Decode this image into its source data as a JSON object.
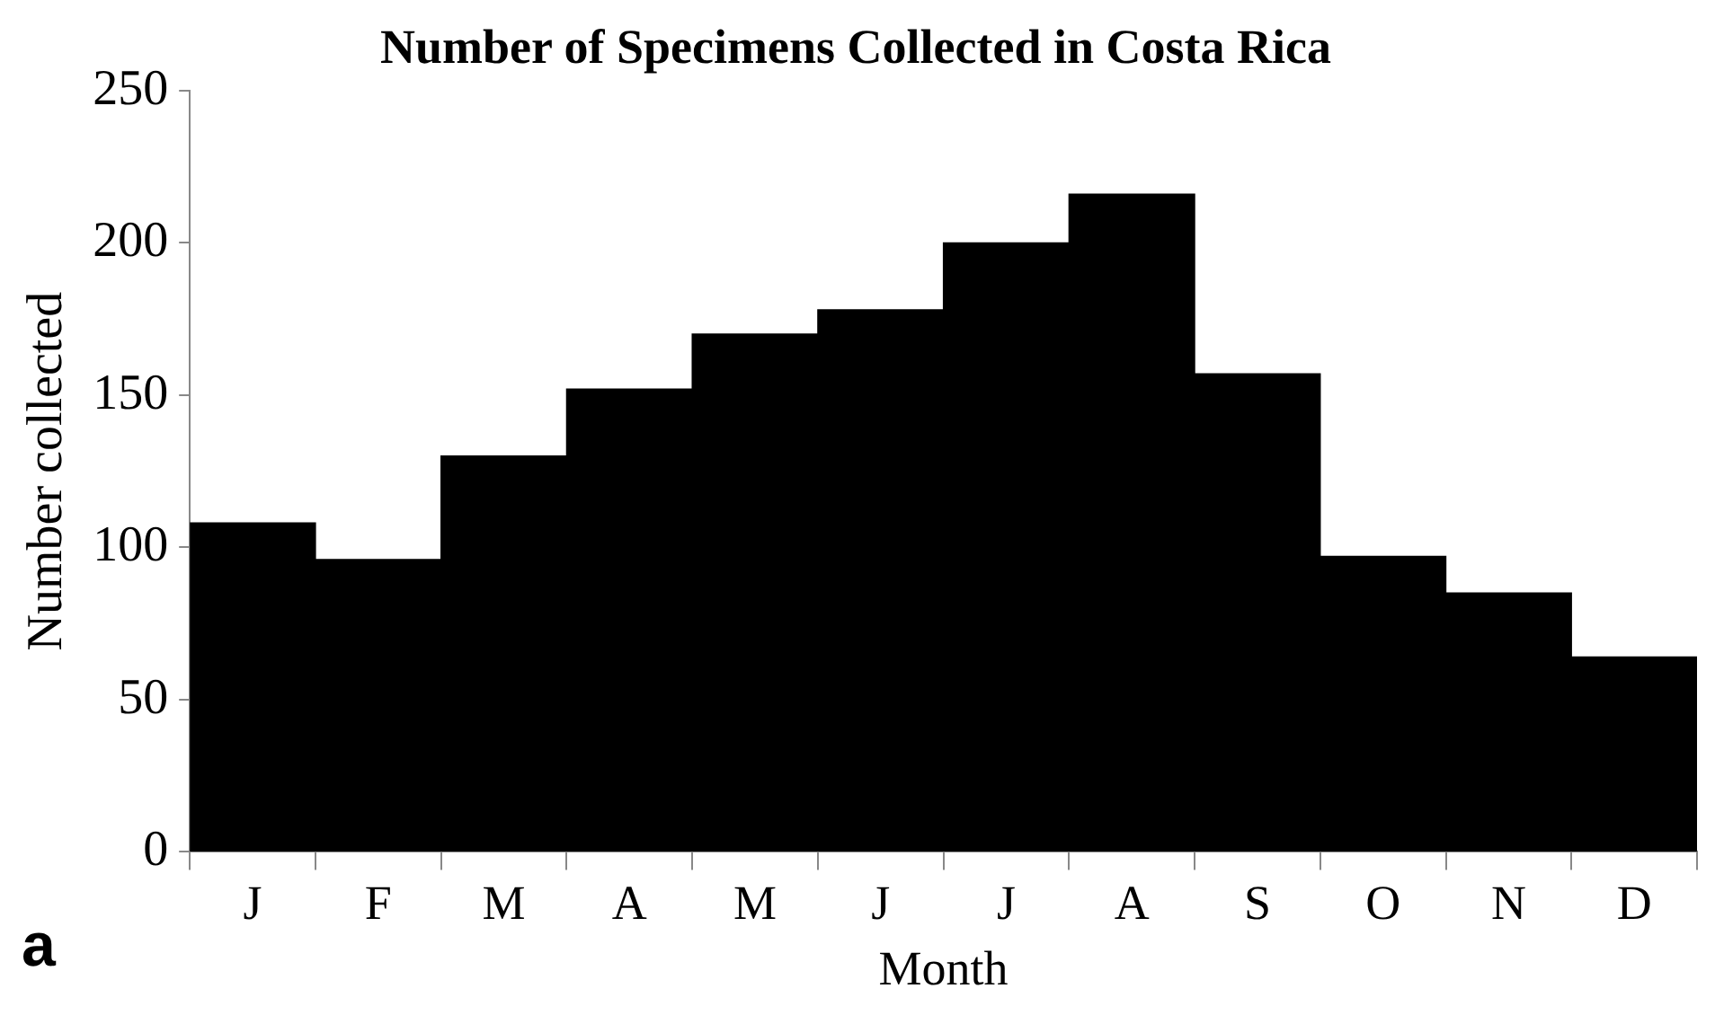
{
  "chart_data": {
    "type": "bar",
    "title": "Number of Specimens Collected in Costa Rica",
    "xlabel": "Month",
    "ylabel": "Number collected",
    "categories": [
      "J",
      "F",
      "M",
      "A",
      "M",
      "J",
      "J",
      "A",
      "S",
      "O",
      "N",
      "D"
    ],
    "values": [
      108,
      96,
      130,
      152,
      170,
      178,
      200,
      216,
      157,
      97,
      85,
      64
    ],
    "color": "#000000",
    "ylim": [
      0,
      250
    ],
    "yticks": [
      0,
      50,
      100,
      150,
      200,
      250
    ],
    "grid": false,
    "legend": false,
    "annotations": [
      "a"
    ]
  }
}
